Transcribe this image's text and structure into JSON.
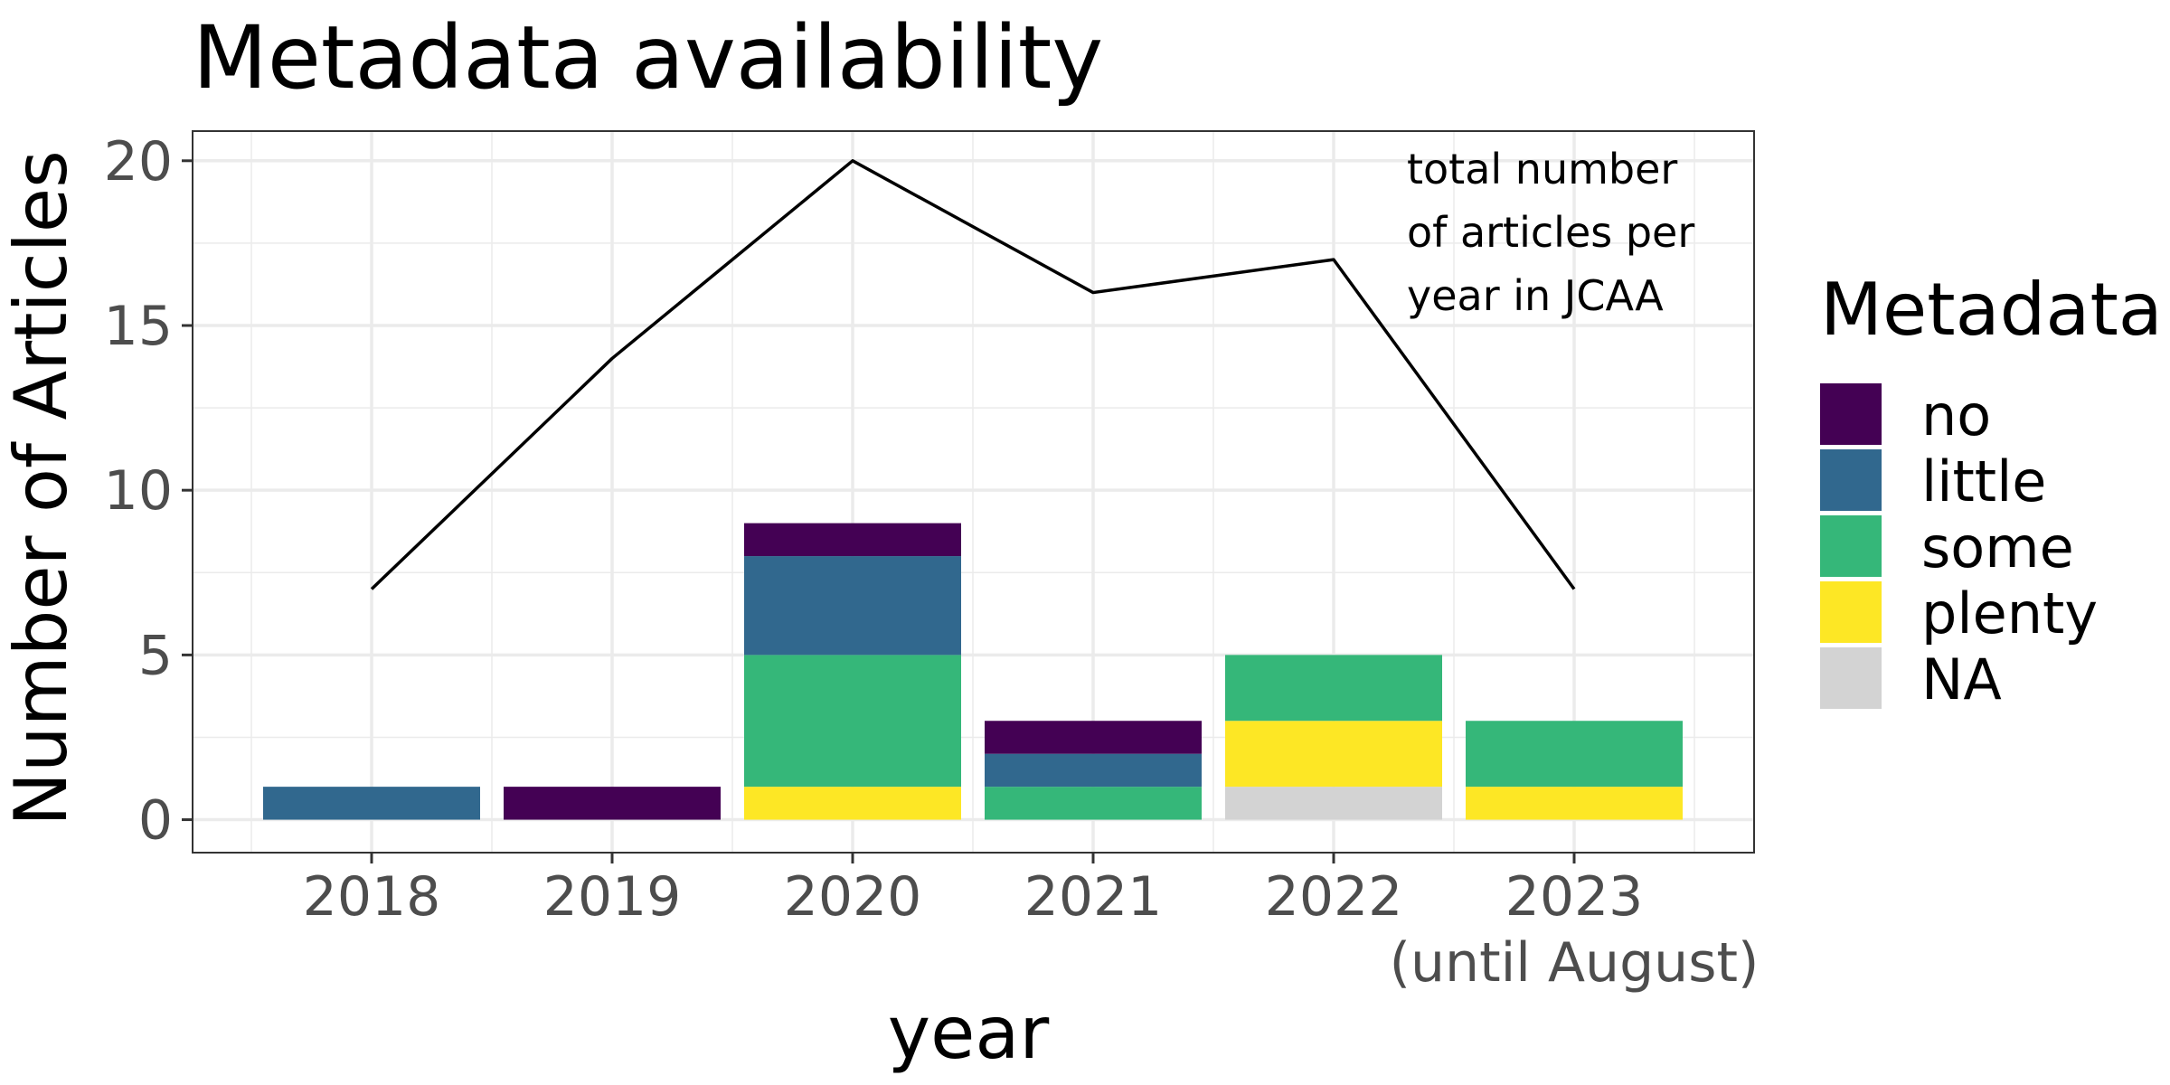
{
  "chart_data": {
    "type": "bar",
    "title": "Metadata availability",
    "xlabel": "year",
    "ylabel": "Number of Articles",
    "categories": [
      "2018",
      "2019",
      "2020",
      "2021",
      "2022",
      "2023"
    ],
    "x_sublabels": [
      "",
      "",
      "",
      "",
      "",
      "(until August)"
    ],
    "stacked": true,
    "ylim": [
      -1,
      20.9
    ],
    "yticks": [
      0,
      5,
      10,
      15,
      20
    ],
    "grid": true,
    "series": [
      {
        "name": "no",
        "color": "#440154",
        "values": [
          0,
          1,
          1,
          1,
          0,
          0
        ]
      },
      {
        "name": "little",
        "color": "#31688E",
        "values": [
          1,
          0,
          3,
          1,
          0,
          0
        ]
      },
      {
        "name": "some",
        "color": "#35B779",
        "values": [
          0,
          0,
          4,
          1,
          2,
          2
        ]
      },
      {
        "name": "plenty",
        "color": "#FDE725",
        "values": [
          0,
          0,
          1,
          0,
          2,
          1
        ]
      },
      {
        "name": "NA",
        "color": "#D3D3D3",
        "values": [
          0,
          0,
          0,
          0,
          1,
          0
        ]
      }
    ],
    "line": {
      "values": [
        7,
        14,
        20,
        16,
        17,
        7
      ],
      "color": "#000000",
      "annotation": [
        "total number",
        "of articles per",
        "year in JCAA"
      ]
    },
    "legend": {
      "title": "Metadata",
      "position": "right"
    }
  }
}
